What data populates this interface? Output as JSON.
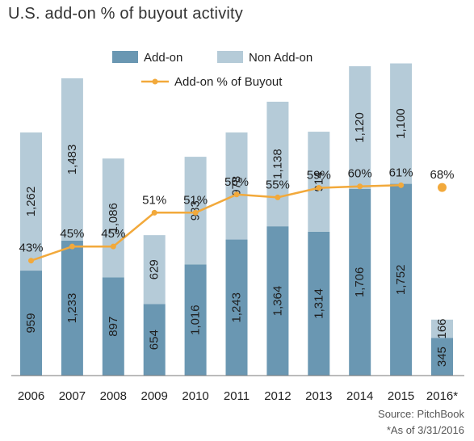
{
  "chart_data": {
    "type": "bar",
    "stacked": true,
    "title": "U.S. add-on % of buyout activity",
    "categories": [
      "2006",
      "2007",
      "2008",
      "2009",
      "2010",
      "2011",
      "2012",
      "2013",
      "2014",
      "2015",
      "2016*"
    ],
    "series": [
      {
        "name": "Add-on",
        "values": [
          959,
          1233,
          897,
          654,
          1016,
          1243,
          1364,
          1314,
          1706,
          1752,
          345
        ],
        "color": "#6a97b2"
      },
      {
        "name": "Non Add-on",
        "values": [
          1262,
          1483,
          1086,
          629,
          983,
          978,
          1138,
          914,
          1120,
          1100,
          166
        ],
        "color": "#b5cbd8"
      }
    ],
    "line_series": {
      "name": "Add-on % of Buyout",
      "values": [
        43,
        45,
        45,
        51,
        51,
        56,
        55,
        59,
        60,
        61,
        68
      ],
      "labels": [
        "43%",
        "45%",
        "45%",
        "51%",
        "51%",
        "56%",
        "55%",
        "59%",
        "60%",
        "61%",
        "68%"
      ],
      "color": "#f2a93b",
      "connected_through": "2015"
    },
    "bar_labels": {
      "Add-on": [
        "959",
        "1,233",
        "897",
        "654",
        "1,016",
        "1,243",
        "1,364",
        "1,314",
        "1,706",
        "1,752",
        "345"
      ],
      "Non Add-on": [
        "1,262",
        "1,483",
        "1,086",
        "629",
        "983",
        "978",
        "1,138",
        "914",
        "1,120",
        "1,100",
        "166"
      ]
    },
    "ylim": [
      0,
      2900
    ],
    "legend_position": "top-center",
    "grid": false,
    "notes": [
      "Source: PitchBook",
      "*As of 3/31/2016"
    ]
  }
}
